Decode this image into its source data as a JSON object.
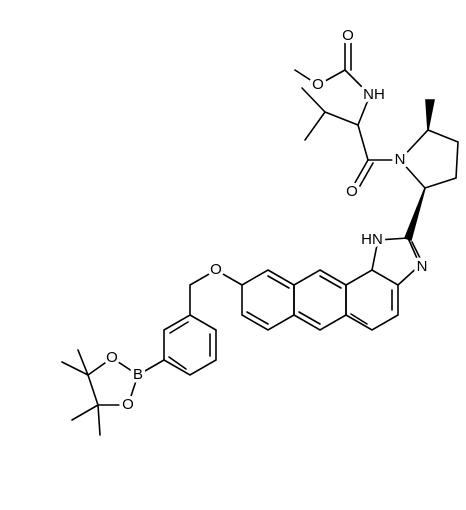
{
  "atoms": [
    {
      "label": "O"
    },
    {
      "label": "O"
    },
    {
      "label": "NH"
    },
    {
      "label": "O"
    },
    {
      "label": "N"
    },
    {
      "label": "HN"
    },
    {
      "label": "N"
    },
    {
      "label": "O"
    },
    {
      "label": "B"
    },
    {
      "label": "O"
    },
    {
      "label": "O"
    }
  ]
}
